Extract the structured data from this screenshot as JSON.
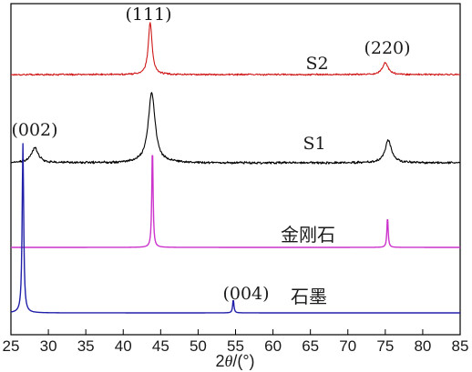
{
  "chart_data": {
    "type": "line",
    "xlabel": "2θ/(°)",
    "xlabel_main": "2",
    "xlabel_theta": "θ",
    "xlabel_unit": "/(°)",
    "xlim": [
      25,
      85
    ],
    "xticks": [
      25,
      30,
      35,
      40,
      45,
      50,
      55,
      60,
      65,
      70,
      75,
      80,
      85
    ],
    "x_tick_labels": [
      "25",
      "30",
      "35",
      "40",
      "45",
      "50",
      "55",
      "60",
      "65",
      "70",
      "75",
      "80",
      "85"
    ],
    "y_ticks_shown": false,
    "series": [
      {
        "name": "S2",
        "color": "#d01818",
        "baseline": 0.0,
        "noise": 0.01,
        "peaks": [
          {
            "x": 43.6,
            "height": 0.52,
            "width": 0.3
          },
          {
            "x": 75.0,
            "height": 0.12,
            "width": 0.45
          }
        ]
      },
      {
        "name": "S1",
        "color": "#000000",
        "baseline": 0.0,
        "noise": 0.014,
        "peaks": [
          {
            "x": 28.2,
            "height": 0.15,
            "width": 0.55
          },
          {
            "x": 43.8,
            "height": 0.7,
            "width": 0.55
          },
          {
            "x": 75.4,
            "height": 0.23,
            "width": 0.5
          }
        ]
      },
      {
        "name": "金刚石",
        "color": "#cc33cc",
        "baseline": 0.0,
        "noise": 0.0,
        "peaks": [
          {
            "x": 43.9,
            "height": 1.0,
            "width": 0.1
          },
          {
            "x": 75.3,
            "height": 0.3,
            "width": 0.1
          }
        ]
      },
      {
        "name": "石墨",
        "color": "#2020a8",
        "baseline": 0.0,
        "noise": 0.0,
        "peaks": [
          {
            "x": 26.6,
            "height": 1.0,
            "width": 0.12
          },
          {
            "x": 54.7,
            "height": 0.08,
            "width": 0.1
          }
        ]
      }
    ],
    "annotations": [
      {
        "text": "(111)",
        "series": "S2"
      },
      {
        "text": "(220)",
        "series": "S2"
      },
      {
        "text": "(002)",
        "series": "S1"
      },
      {
        "text": "(004)",
        "series": "石墨"
      }
    ],
    "series_labels": [
      "S2",
      "S1",
      "金刚石",
      "石墨"
    ]
  }
}
